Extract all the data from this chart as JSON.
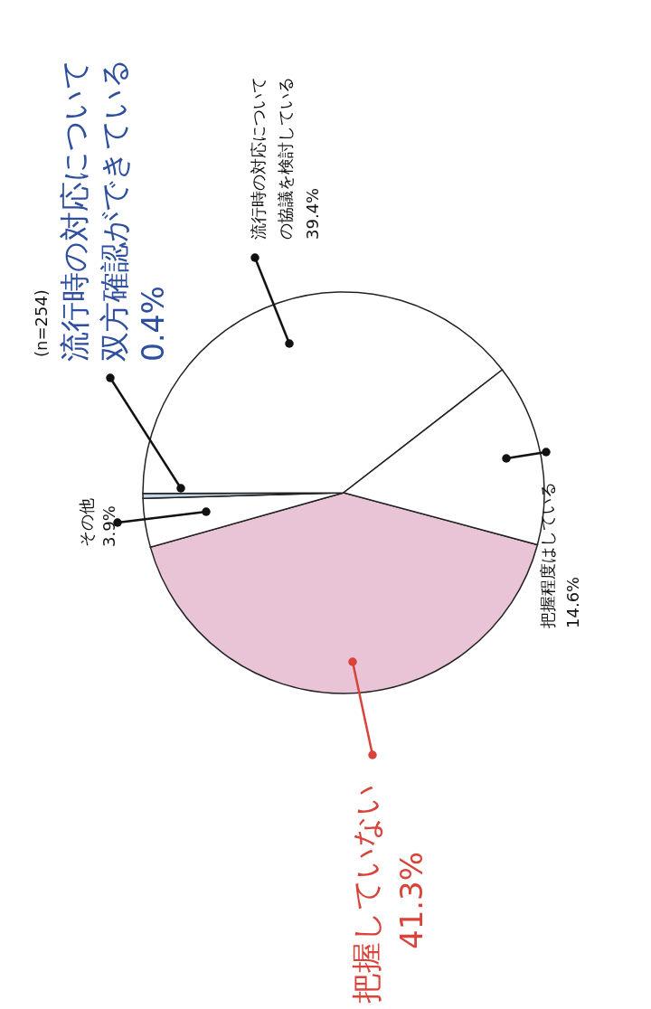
{
  "chart_data": {
    "type": "pie",
    "categories": [
      "把握していない",
      "その他",
      "流行時の対応について双方確認ができている",
      "流行時の対応についての協議を検討している",
      "把握程度はしている"
    ],
    "values": [
      41.3,
      3.9,
      0.4,
      39.4,
      14.6
    ],
    "value_labels": [
      "41.3%",
      "3.9%",
      "0.4%",
      "39.4%",
      "14.6%"
    ],
    "colors": [
      "#e9c3d6",
      "#ffffff",
      "#c3d7ec",
      "#ffffff",
      "#ffffff"
    ],
    "annotations": [
      "(n=254)"
    ]
  }
}
